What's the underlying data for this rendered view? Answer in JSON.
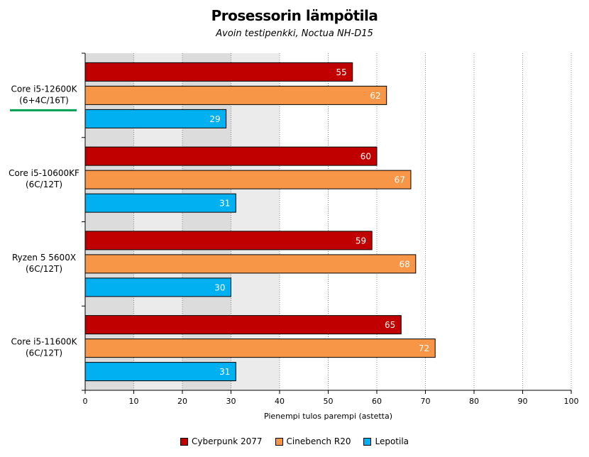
{
  "chart_data": {
    "type": "bar",
    "orientation": "horizontal",
    "title": "Prosessorin lämpötila",
    "subtitle": "Avoin testipenkki, Noctua NH-D15",
    "xlabel": "Pienempi tulos parempi (astetta)",
    "xlim": [
      0,
      100
    ],
    "xticks": [
      0,
      10,
      20,
      30,
      40,
      50,
      60,
      70,
      80,
      90,
      100
    ],
    "grid": true,
    "legend_position": "bottom",
    "categories": [
      {
        "line1": "Core i5-12600K",
        "line2": "(6+4C/16T)",
        "highlight": true
      },
      {
        "line1": "Core i5-10600KF",
        "line2": "(6C/12T)",
        "highlight": false
      },
      {
        "line1": "Ryzen 5 5600X",
        "line2": "(6C/12T)",
        "highlight": false
      },
      {
        "line1": "Core i5-11600K",
        "line2": "(6C/12T)",
        "highlight": false
      }
    ],
    "series": [
      {
        "name": "Cyberpunk 2077",
        "color": "#c00000",
        "values": [
          55,
          60,
          59,
          65
        ]
      },
      {
        "name": "Cinebench R20",
        "color": "#f79646",
        "values": [
          62,
          67,
          68,
          72
        ]
      },
      {
        "name": "Lepotila",
        "color": "#00b0f0",
        "values": [
          29,
          31,
          30,
          31
        ]
      }
    ],
    "highlight_color": "#00a050"
  }
}
